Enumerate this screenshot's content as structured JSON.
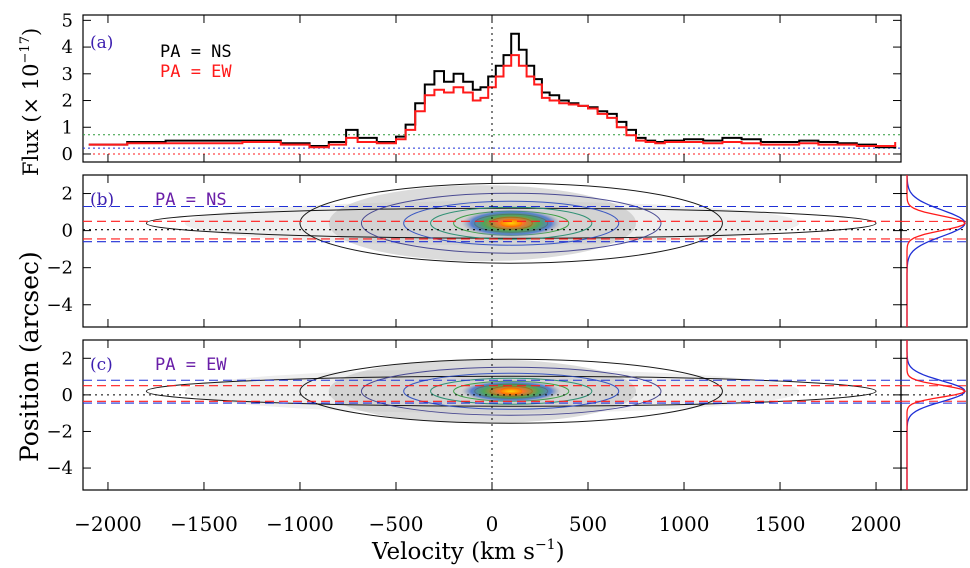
{
  "figure": {
    "xlabel": "Velocity (km s",
    "xlabel_sup": "−1",
    "xlabel_tail": ")",
    "ylabel_top": "Flux (× 10",
    "ylabel_top_sup": "−17",
    "ylabel_top_tail": ")",
    "ylabel_bottom": "Position (arcsec)"
  },
  "colors": {
    "ns": "#000000",
    "ew": "#ff1a1a",
    "blue": "#1f2fd6",
    "green": "#2f9a3a",
    "purple": "#6a1fa8",
    "panel_label": "#3d1fb0"
  },
  "chart_data": [
    {
      "panel": "a",
      "type": "line",
      "label": "(a)",
      "xlim": [
        -2130,
        2130
      ],
      "ylim": [
        -0.3,
        5.2
      ],
      "yticks": [
        0,
        1,
        2,
        3,
        4,
        5
      ],
      "hlines": [
        {
          "y": 0.72,
          "color": "green",
          "style": "dotted"
        },
        {
          "y": 0.22,
          "color": "blue",
          "style": "dotted"
        },
        {
          "y": 0.0,
          "color": "ew",
          "style": "dotted"
        }
      ],
      "vline": 0,
      "series": [
        {
          "name": "PA = NS",
          "color": "ns",
          "x": [
            -2100,
            -1900,
            -1700,
            -1500,
            -1300,
            -1100,
            -950,
            -850,
            -760,
            -700,
            -600,
            -500,
            -450,
            -400,
            -350,
            -300,
            -250,
            -200,
            -150,
            -100,
            -60,
            -20,
            20,
            60,
            100,
            140,
            180,
            220,
            260,
            300,
            350,
            400,
            450,
            500,
            550,
            600,
            650,
            700,
            750,
            800,
            850,
            900,
            1000,
            1100,
            1200,
            1300,
            1400,
            1500,
            1600,
            1700,
            1800,
            1900,
            2000,
            2100
          ],
          "y": [
            0.35,
            0.45,
            0.5,
            0.5,
            0.5,
            0.4,
            0.3,
            0.45,
            0.9,
            0.6,
            0.45,
            0.65,
            1.1,
            1.9,
            2.6,
            3.1,
            2.7,
            3.0,
            2.7,
            2.4,
            2.5,
            2.9,
            3.3,
            3.7,
            4.5,
            3.9,
            3.3,
            2.8,
            2.3,
            2.2,
            2.0,
            1.9,
            1.8,
            1.75,
            1.6,
            1.5,
            1.2,
            0.9,
            0.6,
            0.5,
            0.45,
            0.5,
            0.55,
            0.5,
            0.6,
            0.55,
            0.45,
            0.45,
            0.5,
            0.45,
            0.4,
            0.35,
            0.25,
            0.2
          ]
        },
        {
          "name": "PA = EW",
          "color": "ew",
          "x": [
            -2100,
            -1900,
            -1700,
            -1500,
            -1300,
            -1100,
            -950,
            -850,
            -760,
            -700,
            -600,
            -500,
            -450,
            -400,
            -350,
            -300,
            -250,
            -200,
            -150,
            -100,
            -60,
            -20,
            20,
            60,
            100,
            140,
            180,
            220,
            260,
            300,
            350,
            400,
            450,
            500,
            550,
            600,
            650,
            700,
            750,
            800,
            850,
            900,
            1000,
            1100,
            1200,
            1300,
            1400,
            1500,
            1600,
            1700,
            1800,
            1900,
            2000,
            2100
          ],
          "y": [
            0.35,
            0.4,
            0.4,
            0.4,
            0.45,
            0.35,
            0.25,
            0.35,
            0.6,
            0.45,
            0.4,
            0.55,
            0.9,
            1.6,
            2.2,
            2.4,
            2.3,
            2.5,
            2.3,
            2.0,
            2.1,
            2.5,
            2.9,
            3.3,
            3.7,
            3.3,
            2.9,
            2.6,
            2.1,
            2.0,
            1.9,
            1.85,
            1.8,
            1.7,
            1.5,
            1.35,
            1.0,
            0.7,
            0.5,
            0.45,
            0.4,
            0.45,
            0.45,
            0.4,
            0.45,
            0.4,
            0.35,
            0.35,
            0.4,
            0.35,
            0.35,
            0.3,
            0.3,
            0.45
          ]
        }
      ],
      "legend": [
        {
          "text": "PA = NS",
          "color": "ns"
        },
        {
          "text": "PA = EW",
          "color": "ew"
        }
      ]
    },
    {
      "panel": "b",
      "type": "heatmap",
      "label": "(b)",
      "title": "PA = NS",
      "xlim": [
        -2130,
        2130
      ],
      "ylim": [
        -5.2,
        3.0
      ],
      "yticks": [
        2,
        0,
        -2,
        -4
      ],
      "hlines": [
        {
          "y": 1.3,
          "color": "blue",
          "style": "dashed"
        },
        {
          "y": 0.5,
          "color": "ew",
          "style": "dashed"
        },
        {
          "y": 0.05,
          "color": "ns",
          "style": "dotted"
        },
        {
          "y": -0.45,
          "color": "ew",
          "style": "dashed"
        },
        {
          "y": -0.6,
          "color": "blue",
          "style": "dashed"
        }
      ],
      "core": {
        "center_x": 100,
        "center_y": 0.4
      }
    },
    {
      "panel": "c",
      "type": "heatmap",
      "label": "(c)",
      "title": "PA = EW",
      "xlim": [
        -2130,
        2130
      ],
      "ylim": [
        -5.2,
        3.0
      ],
      "yticks": [
        2,
        0,
        -2,
        -4
      ],
      "hlines": [
        {
          "y": 0.8,
          "color": "blue",
          "style": "dashed"
        },
        {
          "y": 0.5,
          "color": "ew",
          "style": "dashed"
        },
        {
          "y": 0.0,
          "color": "ns",
          "style": "dotted"
        },
        {
          "y": -0.35,
          "color": "ew",
          "style": "dashed"
        },
        {
          "y": -0.45,
          "color": "blue",
          "style": "dashed"
        }
      ],
      "core": {
        "center_x": 100,
        "center_y": 0.2
      }
    }
  ],
  "xticks": [
    -2000,
    -1500,
    -1000,
    -500,
    0,
    500,
    1000,
    1500,
    2000
  ],
  "xtick_labels": [
    "−2000",
    "−1500",
    "−1000",
    "−500",
    "0",
    "500",
    "1000",
    "1500",
    "2000"
  ],
  "ytick_labels": {
    "a": [
      "0",
      "1",
      "2",
      "3",
      "4",
      "5"
    ],
    "bc": [
      "2",
      "0",
      "−2",
      "−4"
    ]
  }
}
